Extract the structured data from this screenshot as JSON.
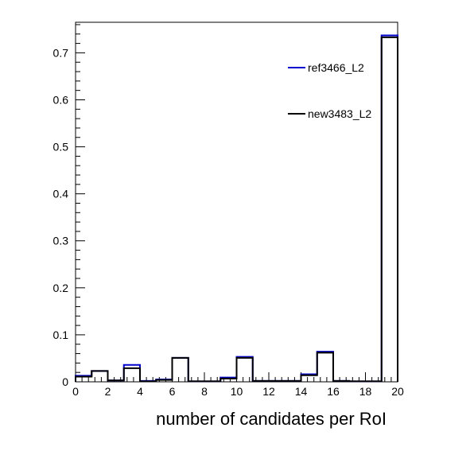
{
  "chart_data": {
    "type": "histogram",
    "xlabel": "number of candidates per RoI",
    "ylabel": "",
    "xlim": [
      0,
      20
    ],
    "ylim": [
      0,
      0.765
    ],
    "x_ticks": [
      "0",
      "2",
      "4",
      "6",
      "8",
      "10",
      "12",
      "14",
      "16",
      "18",
      "20"
    ],
    "y_ticks": [
      "0",
      "0.1",
      "0.2",
      "0.3",
      "0.4",
      "0.5",
      "0.6",
      "0.7"
    ],
    "grid": false,
    "legend_position": "top-right",
    "bin_edges": [
      0,
      1,
      2,
      3,
      4,
      5,
      6,
      7,
      8,
      9,
      10,
      11,
      12,
      13,
      14,
      15,
      16,
      17,
      18,
      19,
      20
    ],
    "series": [
      {
        "name": "ref3466_L2",
        "color": "#0000cc",
        "values": [
          0.013,
          0.023,
          0.003,
          0.036,
          0.002,
          0.005,
          0.051,
          0.001,
          0.001,
          0.009,
          0.053,
          0.002,
          0.002,
          0.002,
          0.016,
          0.064,
          0.002,
          0.001,
          0.001,
          0.737
        ]
      },
      {
        "name": "new3483_L2",
        "color": "#000000",
        "values": [
          0.011,
          0.023,
          0.003,
          0.029,
          0.001,
          0.004,
          0.051,
          0.001,
          0.001,
          0.007,
          0.051,
          0.002,
          0.002,
          0.002,
          0.014,
          0.062,
          0.002,
          0.001,
          0.001,
          0.733
        ]
      }
    ]
  }
}
